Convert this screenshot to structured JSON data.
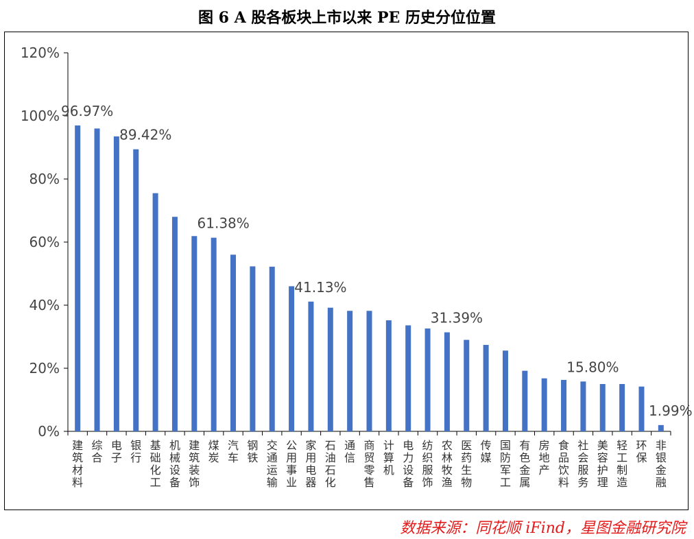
{
  "title": "图 6 A 股各板块上市以来 PE 历史分位位置",
  "source": "数据来源：同花顺 iFind，星图金融研究院",
  "chart_data": {
    "type": "bar",
    "categories": [
      "建筑材料",
      "综合",
      "电子",
      "银行",
      "基础化工",
      "机械设备",
      "建筑装饰",
      "煤炭",
      "汽车",
      "钢铁",
      "交通运输",
      "公用事业",
      "家用电器",
      "石油石化",
      "通信",
      "商贸零售",
      "计算机",
      "电力设备",
      "纺织服饰",
      "农林牧渔",
      "医药生物",
      "传媒",
      "国防军工",
      "有色金属",
      "房地产",
      "食品饮料",
      "社会服务",
      "美容护理",
      "轻工制造",
      "环保",
      "非银金融"
    ],
    "values": [
      96.97,
      96.0,
      93.5,
      89.42,
      75.5,
      68.0,
      61.9,
      61.38,
      56.0,
      52.3,
      52.2,
      46.0,
      41.13,
      39.2,
      38.2,
      38.2,
      35.2,
      33.6,
      32.6,
      31.39,
      29.0,
      27.4,
      25.6,
      19.2,
      16.8,
      16.3,
      15.8,
      15.0,
      15.0,
      14.2,
      1.99
    ],
    "data_labels": [
      {
        "index": 0,
        "text": "96.97%"
      },
      {
        "index": 3,
        "text": "89.42%"
      },
      {
        "index": 7,
        "text": "61.38%"
      },
      {
        "index": 12,
        "text": "41.13%"
      },
      {
        "index": 19,
        "text": "31.39%"
      },
      {
        "index": 26,
        "text": "15.80%"
      },
      {
        "index": 30,
        "text": "1.99%"
      }
    ],
    "y_ticks": [
      "0%",
      "20%",
      "40%",
      "60%",
      "80%",
      "100%",
      "120%"
    ],
    "ylim": [
      0,
      120
    ],
    "bar_color": "#4472c4",
    "grid": false,
    "legend": "none"
  }
}
